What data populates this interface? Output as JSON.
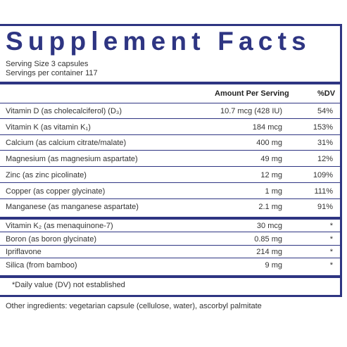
{
  "title": "Supplement Facts",
  "serving_size": "Serving Size  3  capsules",
  "servings_per_container": "Servings per container  117",
  "headers": {
    "amount": "Amount Per Serving",
    "dv": "%DV"
  },
  "rows": [
    {
      "name": "Vitamin D (as cholecalciferol) (D₃)",
      "amount": "10.7 mcg (428 IU)",
      "dv": "54%"
    },
    {
      "name": "Vitamin K (as vitamin K₁)",
      "amount": "184 mcg",
      "dv": "153%"
    },
    {
      "name": "Calcium (as calcium citrate/malate)",
      "amount": "400 mg",
      "dv": "31%"
    },
    {
      "name": "Magnesium (as magnesium aspartate)",
      "amount": "49 mg",
      "dv": "12%"
    },
    {
      "name": "Zinc (as zinc picolinate)",
      "amount": "12 mg",
      "dv": "109%"
    },
    {
      "name": "Copper (as copper glycinate)",
      "amount": "1 mg",
      "dv": "111%"
    },
    {
      "name": "Manganese (as manganese aspartate)",
      "amount": "2.1 mg",
      "dv": "91%"
    }
  ],
  "rows_no_dv": [
    {
      "name": "Vitamin K₂ (as menaquinone-7)",
      "amount": "30 mcg",
      "dv": "*"
    },
    {
      "name": "Boron (as boron glycinate)",
      "amount": "0.85 mg",
      "dv": "*"
    },
    {
      "name": "Ipriflavone",
      "amount": "214 mg",
      "dv": "*"
    },
    {
      "name": "Silica (from bamboo)",
      "amount": "9 mg",
      "dv": "*"
    }
  ],
  "footnote": "*Daily value (DV) not established",
  "other_ingredients": "Other ingredients: vegetarian capsule (cellulose, water), ascorbyl palmitate",
  "colors": {
    "accent": "#2e3582",
    "text": "#333333"
  }
}
